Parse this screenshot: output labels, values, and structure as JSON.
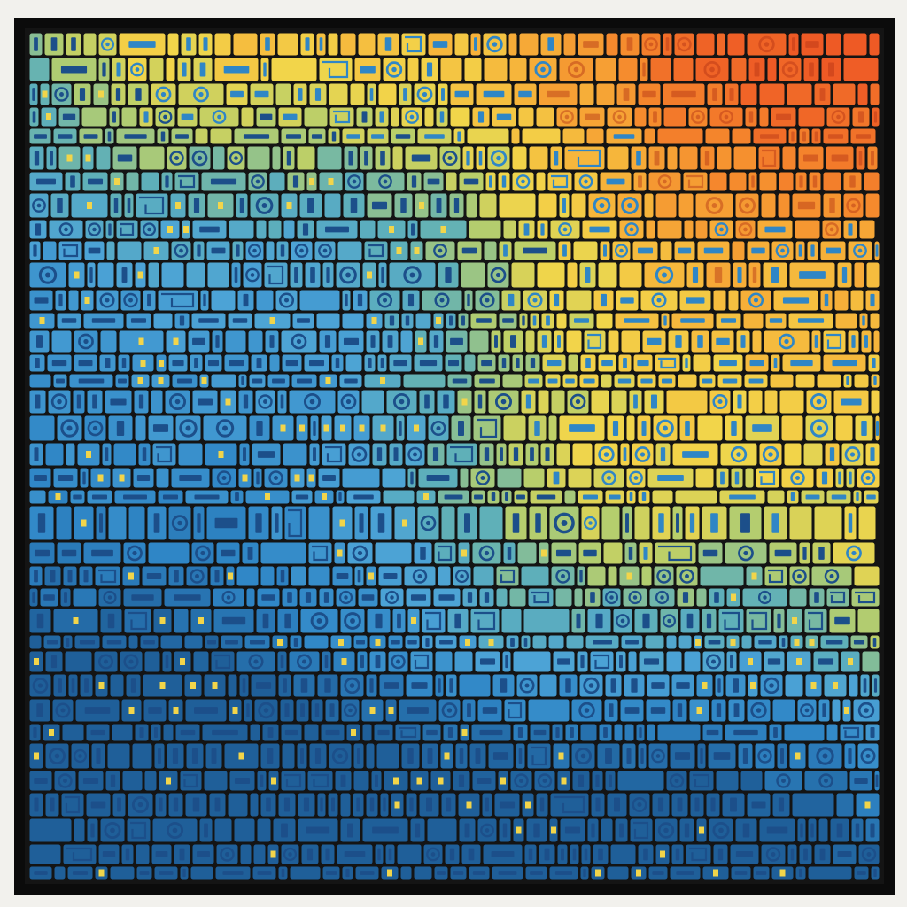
{
  "artwork": {
    "colors": {
      "mat": "#f2f1ed",
      "frame": "#0b0b0b",
      "grout": "#141414",
      "blue_dark": "#1f5f99",
      "blue": "#2f86c6",
      "blue_light": "#4ca3d6",
      "teal": "#5fb0b8",
      "green_yellow": "#b9cf6a",
      "yellow": "#f2d54a",
      "yellow_orange": "#f6b33a",
      "orange": "#f58a2d",
      "red_orange": "#ee5a25",
      "glyph_dark": "#1c4f8a",
      "glyph_light": "#9fd0e8"
    },
    "motifs": [
      "rectangular-tiles",
      "circle-glyphs",
      "bar-glyphs",
      "maze-glyphs"
    ]
  }
}
